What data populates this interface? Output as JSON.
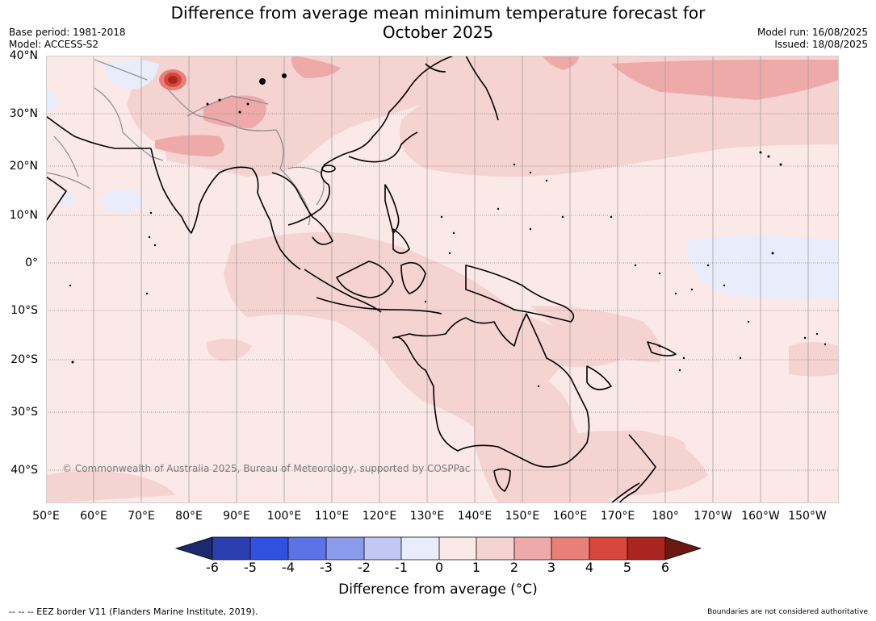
{
  "title_line1": "Difference from average mean minimum temperature forecast for",
  "title_line2": "October 2025",
  "base_period": "Base period: 1981-2018",
  "model": "Model: ACCESS-S2",
  "model_run": "Model run: 16/08/2025",
  "issued": "Issued: 18/08/2025",
  "lat_labels": [
    "40°N",
    "30°N",
    "20°N",
    "10°N",
    "0°",
    "10°S",
    "20°S",
    "30°S",
    "40°S"
  ],
  "lon_labels": [
    "50°E",
    "60°E",
    "70°E",
    "80°E",
    "90°E",
    "100°E",
    "110°E",
    "120°E",
    "130°E",
    "140°E",
    "150°E",
    "160°E",
    "170°E",
    "180°",
    "170°W",
    "160°W",
    "150°W"
  ],
  "colorbar": {
    "labels": [
      "-6",
      "-5",
      "-4",
      "-3",
      "-2",
      "-1",
      "0",
      "1",
      "2",
      "3",
      "4",
      "5",
      "6"
    ],
    "colors": [
      "#1a2a6c",
      "#2b3eb0",
      "#3150e0",
      "#5c73e6",
      "#8b9bec",
      "#c1c8f4",
      "#e9ecfb",
      "#fbe9e8",
      "#f5d3d1",
      "#edaaa8",
      "#e88078",
      "#d8463c",
      "#a8261f",
      "#6b1712"
    ],
    "title": "Difference from average (°C)"
  },
  "copyright": "© Commonwealth of Australia 2025, Bureau of Meteorology, supported by COSPPac",
  "eez_note": "-- -- -- EEZ border V11 (Flanders Marine Institute, 2019).",
  "disclaimer": "Boundaries are not considered authoritative"
}
